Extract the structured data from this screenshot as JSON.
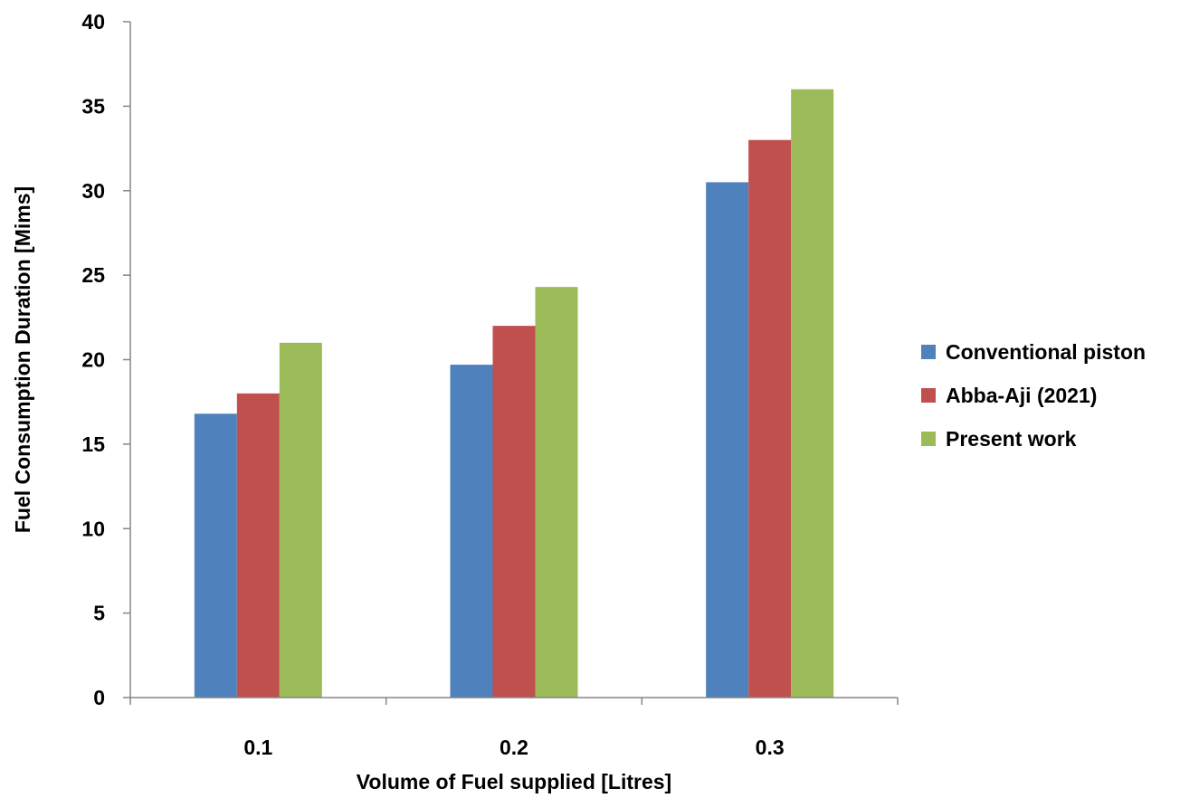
{
  "chart_data": {
    "type": "bar",
    "title": "",
    "xlabel": "Volume of Fuel supplied [Litres]",
    "ylabel": "Fuel Consumption Duration [Mims]",
    "ylim": [
      0,
      40
    ],
    "yticks": [
      "0",
      "5",
      "10",
      "15",
      "20",
      "25",
      "30",
      "35",
      "40"
    ],
    "categories": [
      "0.1",
      "0.2",
      "0.3"
    ],
    "series": [
      {
        "name": "Conventional piston",
        "color": "#4F81BD",
        "values": [
          16.8,
          19.7,
          30.5
        ]
      },
      {
        "name": "Abba-Aji (2021)",
        "color": "#C0504D",
        "values": [
          18.0,
          22.0,
          33.0
        ]
      },
      {
        "name": "Present work",
        "color": "#9BBB59",
        "values": [
          21.0,
          24.3,
          36.0
        ]
      }
    ],
    "grid": false,
    "legend_position": "right"
  }
}
